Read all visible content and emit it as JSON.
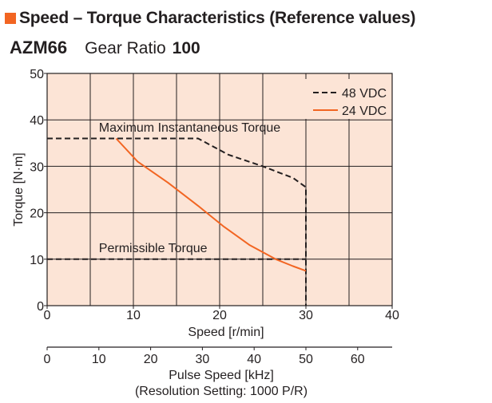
{
  "header": {
    "title": "Speed – Torque Characteristics (Reference values)",
    "model": "AZM66",
    "gear_ratio_label": "Gear Ratio",
    "gear_ratio_value": "100"
  },
  "colors": {
    "accent": "#f26522",
    "plot_background": "#fce4d6",
    "line_48vdc": "#231f20",
    "line_24vdc": "#f26522"
  },
  "chart_data": {
    "type": "line",
    "xlabel": "Speed [r/min]",
    "ylabel": "Torque [N·m]",
    "xlim": [
      0,
      40
    ],
    "ylim": [
      0,
      50
    ],
    "x_ticks": [
      0,
      10,
      20,
      30,
      40
    ],
    "y_ticks": [
      0,
      10,
      20,
      30,
      40,
      50
    ],
    "grid": true,
    "legend_position": "top-right",
    "series": [
      {
        "name": "48 VDC",
        "style": "dashed",
        "color": "#231f20",
        "points": [
          [
            0,
            36
          ],
          [
            17.5,
            36
          ],
          [
            21,
            32.5
          ],
          [
            25,
            30
          ],
          [
            28.5,
            27.5
          ],
          [
            30,
            25.5
          ],
          [
            30,
            0
          ]
        ]
      },
      {
        "name": "24 VDC",
        "style": "solid",
        "color": "#f26522",
        "points": [
          [
            8,
            36
          ],
          [
            10.5,
            31
          ],
          [
            14,
            26.5
          ],
          [
            17.5,
            21.5
          ],
          [
            20.5,
            17
          ],
          [
            23.5,
            13
          ],
          [
            26.5,
            10
          ],
          [
            28.5,
            8.5
          ],
          [
            30,
            7.5
          ]
        ]
      }
    ],
    "reference_lines": [
      {
        "y": 10,
        "x_end": 30,
        "style": "dashed"
      }
    ],
    "annotations": [
      {
        "text": "Maximum Instantaneous Torque",
        "x": 6,
        "y": 37.5
      },
      {
        "text": "Permissible Torque",
        "x": 6,
        "y": 11.5
      }
    ],
    "secondary_axis": {
      "label_line1": "Pulse Speed [kHz]",
      "label_line2": "(Resolution Setting: 1000 P/R)",
      "ticks": [
        0,
        10,
        20,
        30,
        40,
        50,
        60
      ],
      "scale_factor": 1.6667
    }
  }
}
